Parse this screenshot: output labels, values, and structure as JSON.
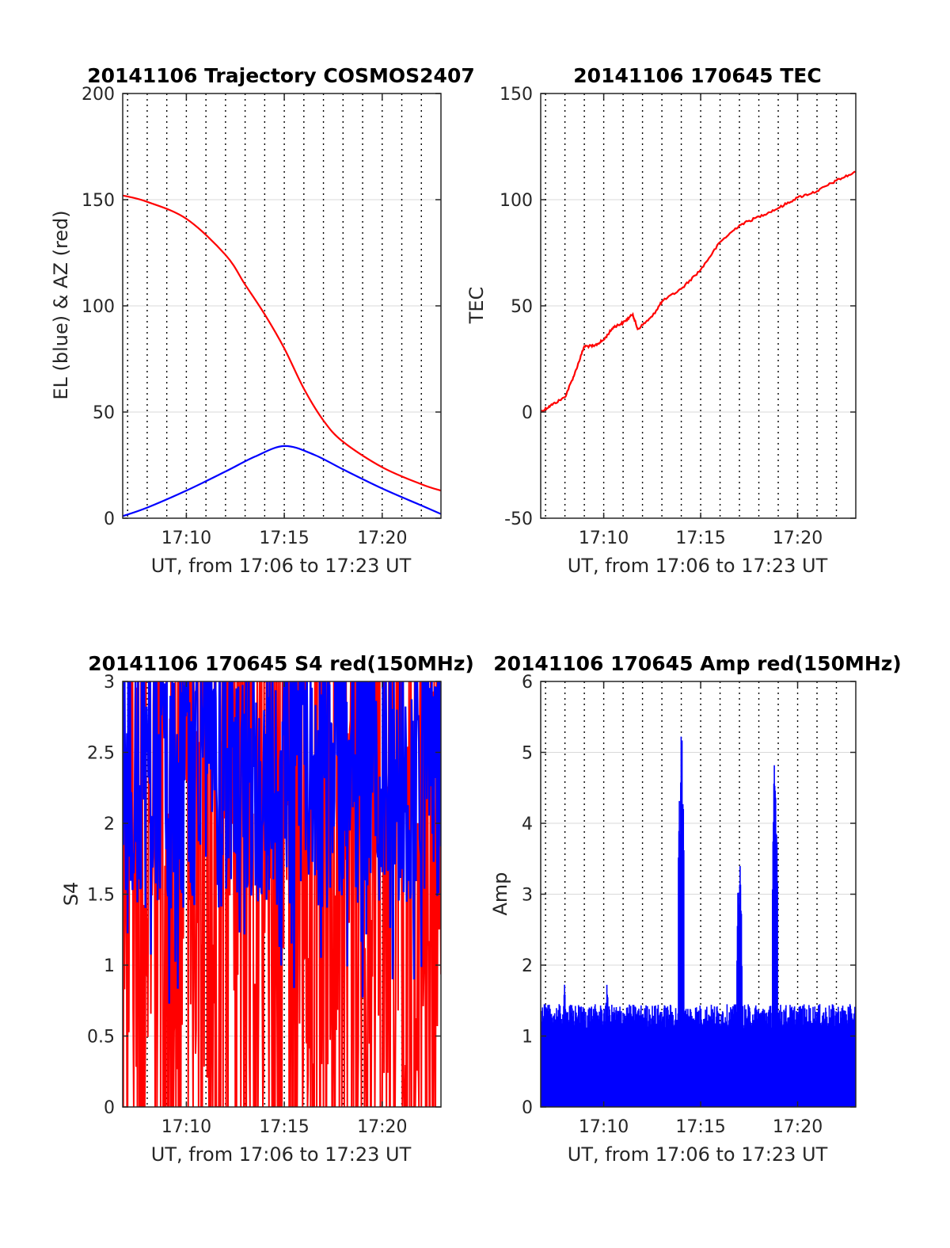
{
  "colors": {
    "red": "#ff0000",
    "blue": "#0000ff",
    "grid": "#d9d9d9",
    "axis": "#262626"
  },
  "chart_data": [
    {
      "type": "line",
      "title": "20141106 Trajectory COSMOS2407",
      "xlabel": "UT, from 17:06 to 17:23 UT",
      "ylabel": "EL (blue) & AZ (red)",
      "xlim": [
        "17:06:45",
        "17:23:00"
      ],
      "ylim": [
        0,
        200
      ],
      "xticks": [
        "17:10",
        "17:15",
        "17:20"
      ],
      "yticks": [
        "0",
        "50",
        "100",
        "150",
        "200"
      ],
      "grid": true,
      "series": [
        {
          "color": "#ff0000",
          "x": [
            "17:06:45",
            "17:08:00",
            "17:10:00",
            "17:12:00",
            "17:13:00",
            "17:14:00",
            "17:15:00",
            "17:16:00",
            "17:17:00",
            "17:18:00",
            "17:20:00",
            "17:22:00",
            "17:23:00"
          ],
          "values": [
            152,
            149,
            141,
            124,
            110,
            96,
            80,
            61,
            46,
            36,
            24,
            16,
            13
          ]
        },
        {
          "color": "#0000ff",
          "x": [
            "17:06:45",
            "17:08:00",
            "17:10:00",
            "17:12:00",
            "17:13:30",
            "17:15:00",
            "17:16:30",
            "17:18:00",
            "17:20:00",
            "17:22:00",
            "17:23:00"
          ],
          "values": [
            1,
            5,
            13,
            22,
            29,
            34,
            30,
            23,
            14,
            6,
            2
          ]
        }
      ]
    },
    {
      "type": "line",
      "title": "20141106 170645 TEC",
      "xlabel": "UT, from 17:06 to 17:23 UT",
      "ylabel": "TEC",
      "xlim": [
        "17:06:45",
        "17:23:00"
      ],
      "ylim": [
        -50,
        150
      ],
      "xticks": [
        "17:10",
        "17:15",
        "17:20"
      ],
      "yticks": [
        "-50",
        "0",
        "50",
        "100",
        "150"
      ],
      "grid": true,
      "series": [
        {
          "color": "#ff0000",
          "x": [
            "17:06:45",
            "17:07:15",
            "17:08:00",
            "17:08:30",
            "17:09:00",
            "17:09:30",
            "17:10:00",
            "17:10:30",
            "17:11:00",
            "17:11:30",
            "17:11:45",
            "17:12:30",
            "17:13:00",
            "17:14:00",
            "17:15:00",
            "17:16:00",
            "17:17:00",
            "17:18:00",
            "17:19:00",
            "17:20:00",
            "17:21:00",
            "17:22:00",
            "17:23:00"
          ],
          "values": [
            0,
            3,
            7,
            18,
            31,
            31,
            34,
            40,
            42,
            46,
            39,
            45,
            52,
            58,
            67,
            80,
            88,
            92,
            96,
            101,
            104,
            109,
            113
          ]
        }
      ]
    },
    {
      "type": "line",
      "title": "20141106 170645 S4 red(150MHz)",
      "xlabel": "UT, from 17:06 to 17:23 UT",
      "ylabel": "S4",
      "xlim": [
        "17:06:45",
        "17:23:00"
      ],
      "ylim": [
        0,
        3
      ],
      "xticks": [
        "17:10",
        "17:15",
        "17:20"
      ],
      "yticks": [
        "0",
        "0.5",
        "1",
        "1.5",
        "2",
        "2.5",
        "3"
      ],
      "grid": true,
      "series": [
        {
          "color": "#ff0000",
          "note_values": "noisy S4, frequently saturating at 3 and dropping to 0",
          "x_range": [
            "17:06:45",
            "17:23:00"
          ],
          "values_range": [
            0,
            3
          ]
        },
        {
          "color": "#0000ff",
          "note_values": "noisy S4 envelope mostly between 1.5 and 3, minima near 0.65",
          "x_range": [
            "17:06:45",
            "17:23:00"
          ],
          "values_range": [
            0.65,
            3
          ]
        }
      ]
    },
    {
      "type": "line",
      "title": "20141106 170645 Amp red(150MHz)",
      "xlabel": "UT, from 17:06 to 17:23 UT",
      "ylabel": "Amp",
      "xlim": [
        "17:06:45",
        "17:23:00"
      ],
      "ylim": [
        0,
        6
      ],
      "xticks": [
        "17:10",
        "17:15",
        "17:20"
      ],
      "yticks": [
        "0",
        "1",
        "2",
        "3",
        "4",
        "5",
        "6"
      ],
      "grid": true,
      "series": [
        {
          "color": "#0000ff",
          "peaks": [
            {
              "x": "17:08:00",
              "value": 2.1
            },
            {
              "x": "17:10:10",
              "value": 2.0
            },
            {
              "x": "17:14:00",
              "value": 5.85
            },
            {
              "x": "17:17:00",
              "value": 3.75
            },
            {
              "x": "17:18:50",
              "value": 5.35
            }
          ],
          "baseline_range": [
            0,
            1.5
          ]
        }
      ]
    }
  ]
}
